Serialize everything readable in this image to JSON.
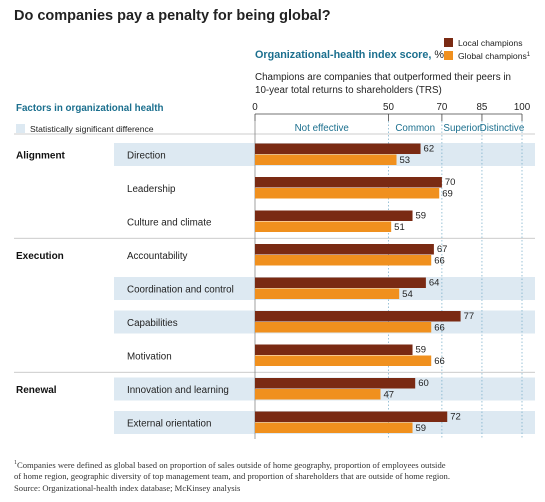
{
  "title": "Do companies pay a penalty for being global?",
  "axis_title_bold": "Organizational-health index score,",
  "axis_title_unit": " %",
  "description_line1": "Champions are companies that outperformed their peers in",
  "description_line2": "10-year total returns to shareholders (TRS)",
  "factors_header": "Factors in organizational health",
  "sig_legend": "Statistically significant difference",
  "footnote_marker": "1",
  "footnote_line1": "Companies were defined as global based on proportion of sales outside of home geography, proportion of employees outside",
  "footnote_line2": "of home region, geographic diversity of top management team, and proportion of shareholders that are outside of home region.",
  "source": "Source: Organizational-health index database; McKinsey analysis",
  "colors": {
    "local": "#7a2a13",
    "global": "#f0901e",
    "highlight": "#dde9f2",
    "accent": "#1b6f8e",
    "grid": "#6fa9c6"
  },
  "chart_data": {
    "type": "bar",
    "orientation": "horizontal",
    "xlim": [
      0,
      100
    ],
    "ticks": [
      0,
      50,
      70,
      85,
      100
    ],
    "zones": [
      {
        "label": "Not effective",
        "from": 0,
        "to": 50
      },
      {
        "label": "Common",
        "from": 50,
        "to": 70
      },
      {
        "label": "Superior",
        "from": 70,
        "to": 85
      },
      {
        "label": "Distinctive",
        "from": 85,
        "to": 100
      }
    ],
    "legend": [
      {
        "name": "Local champions",
        "sup": "",
        "color": "#7a2a13"
      },
      {
        "name": "Global champions",
        "sup": "1",
        "color": "#f0901e"
      }
    ],
    "groups": [
      {
        "name": "Alignment",
        "items": [
          {
            "label": "Direction",
            "local": 62,
            "global": 53,
            "significant": true
          },
          {
            "label": "Leadership",
            "local": 70,
            "global": 69,
            "significant": false
          },
          {
            "label": "Culture and climate",
            "local": 59,
            "global": 51,
            "significant": false
          }
        ]
      },
      {
        "name": "Execution",
        "items": [
          {
            "label": "Accountability",
            "local": 67,
            "global": 66,
            "significant": false
          },
          {
            "label": "Coordination and control",
            "local": 64,
            "global": 54,
            "significant": true
          },
          {
            "label": "Capabilities",
            "local": 77,
            "global": 66,
            "significant": true
          },
          {
            "label": "Motivation",
            "local": 59,
            "global": 66,
            "significant": false
          }
        ]
      },
      {
        "name": "Renewal",
        "items": [
          {
            "label": "Innovation and learning",
            "local": 60,
            "global": 47,
            "significant": true
          },
          {
            "label": "External orientation",
            "local": 72,
            "global": 59,
            "significant": true
          }
        ]
      }
    ]
  }
}
